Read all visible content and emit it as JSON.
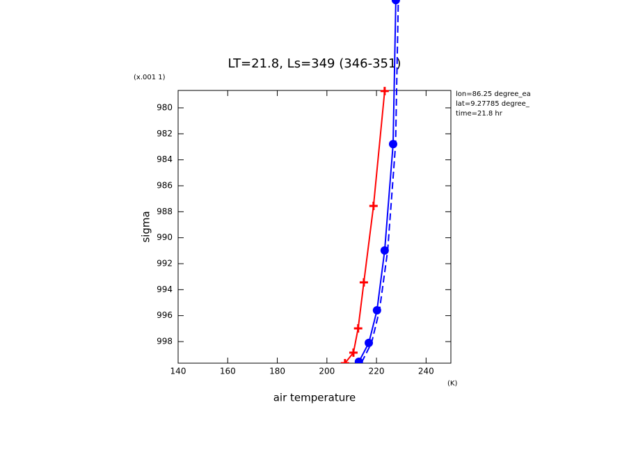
{
  "chart_data": {
    "type": "line",
    "title": "LT=21.8, Ls=349 (346-351)",
    "x_label": "air temperature",
    "x_unit": "(K)",
    "y_label": "sigma",
    "y_unit": "(x.001 1)",
    "annotations": [
      "lon=86.25 degree_ea",
      "lat=9.27785 degree_",
      "time=21.8 hr"
    ],
    "xlim": [
      140,
      250
    ],
    "ylim": [
      999.66,
      978.66
    ],
    "xticks": [
      140,
      160,
      180,
      200,
      220,
      240
    ],
    "yticks": [
      980,
      982,
      984,
      986,
      988,
      990,
      992,
      994,
      996,
      998
    ],
    "series": [
      {
        "color": "#ff0000",
        "marker": "plus",
        "dashed": false,
        "x": [
          207.3,
          210.7,
          212.6,
          214.9,
          218.8,
          223.3
        ],
        "values": [
          999.66,
          998.85,
          996.98,
          993.44,
          987.55,
          978.71
        ]
      },
      {
        "color": "#0000ff",
        "marker": "dot",
        "dashed": false,
        "x": [
          212.9,
          216.9,
          220.2,
          223.3,
          226.7,
          227.8
        ],
        "values": [
          999.55,
          998.1,
          995.59,
          990.98,
          982.79,
          971.7
        ]
      },
      {
        "color": "#0000ff",
        "marker": "none",
        "dashed": true,
        "x": [
          214.0,
          218.0,
          221.2,
          224.5,
          227.7,
          228.8
        ],
        "values": [
          999.6,
          998.1,
          995.6,
          991.0,
          982.8,
          971.7
        ]
      }
    ]
  }
}
